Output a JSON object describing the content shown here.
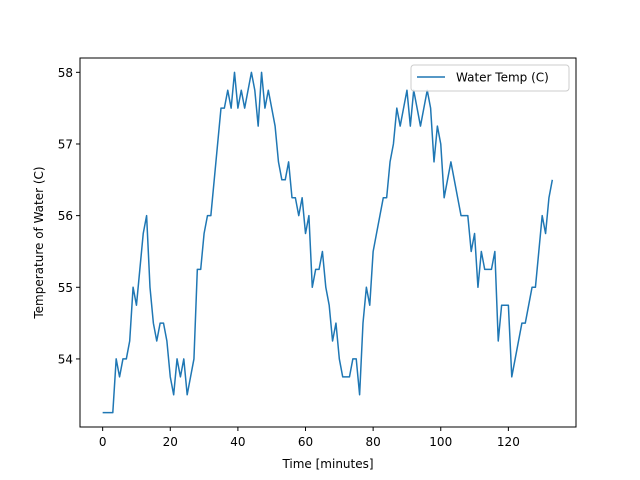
{
  "chart_data": {
    "type": "line",
    "title": "",
    "xlabel": "Time [minutes]",
    "ylabel": "Temperature of Water (C)",
    "xlim": [
      -6.7,
      140
    ],
    "ylim": [
      53.05,
      58.2
    ],
    "x_ticks": [
      0,
      20,
      40,
      60,
      80,
      100,
      120
    ],
    "y_ticks": [
      54,
      55,
      56,
      57,
      58
    ],
    "grid": false,
    "legend_position": "top-right",
    "series": [
      {
        "name": "Water Temp (C)",
        "color": "#1f77b4",
        "x": [
          0,
          1,
          2,
          3,
          4,
          5,
          6,
          7,
          8,
          9,
          10,
          11,
          12,
          13,
          14,
          15,
          16,
          17,
          18,
          19,
          20,
          21,
          22,
          23,
          24,
          25,
          26,
          27,
          28,
          29,
          30,
          31,
          32,
          33,
          34,
          35,
          36,
          37,
          38,
          39,
          40,
          41,
          42,
          43,
          44,
          45,
          46,
          47,
          48,
          49,
          50,
          51,
          52,
          53,
          54,
          55,
          56,
          57,
          58,
          59,
          60,
          61,
          62,
          63,
          64,
          65,
          66,
          67,
          68,
          69,
          70,
          71,
          72,
          73,
          74,
          75,
          76,
          77,
          78,
          79,
          80,
          81,
          82,
          83,
          84,
          85,
          86,
          87,
          88,
          89,
          90,
          91,
          92,
          93,
          94,
          95,
          96,
          97,
          98,
          99,
          100,
          101,
          102,
          103,
          104,
          105,
          106,
          107,
          108,
          109,
          110,
          111,
          112,
          113,
          114,
          115,
          116,
          117,
          118,
          119,
          120,
          121,
          122,
          123,
          124,
          125,
          126,
          127,
          128,
          129,
          130,
          131,
          132,
          133
        ],
        "y": [
          53.25,
          53.25,
          53.25,
          53.25,
          54.0,
          53.75,
          54.0,
          54.0,
          54.25,
          55.0,
          54.75,
          55.25,
          55.75,
          56.0,
          55.0,
          54.5,
          54.25,
          54.5,
          54.5,
          54.25,
          53.75,
          53.5,
          54.0,
          53.75,
          54.0,
          53.5,
          53.75,
          54.0,
          55.25,
          55.25,
          55.75,
          56.0,
          56.0,
          56.5,
          57.0,
          57.5,
          57.5,
          57.75,
          57.5,
          58.0,
          57.5,
          57.75,
          57.5,
          57.75,
          58.0,
          57.75,
          57.25,
          58.0,
          57.5,
          57.75,
          57.5,
          57.25,
          56.75,
          56.5,
          56.5,
          56.75,
          56.25,
          56.25,
          56.0,
          56.25,
          55.75,
          56.0,
          55.0,
          55.25,
          55.25,
          55.5,
          55.0,
          54.75,
          54.25,
          54.5,
          54.0,
          53.75,
          53.75,
          53.75,
          54.0,
          54.0,
          53.5,
          54.5,
          55.0,
          54.75,
          55.5,
          55.75,
          56.0,
          56.25,
          56.25,
          56.75,
          57.0,
          57.5,
          57.25,
          57.5,
          57.75,
          57.25,
          57.75,
          57.5,
          57.25,
          57.5,
          57.75,
          57.5,
          56.75,
          57.25,
          57.0,
          56.25,
          56.5,
          56.75,
          56.5,
          56.25,
          56.0,
          56.0,
          56.0,
          55.5,
          55.75,
          55.0,
          55.5,
          55.25,
          55.25,
          55.25,
          55.5,
          54.25,
          54.75,
          54.75,
          54.75,
          53.75,
          54.0,
          54.25,
          54.5,
          54.5,
          54.75,
          55.0,
          55.0,
          55.5,
          56.0,
          55.75,
          56.25,
          56.5
        ]
      }
    ]
  }
}
